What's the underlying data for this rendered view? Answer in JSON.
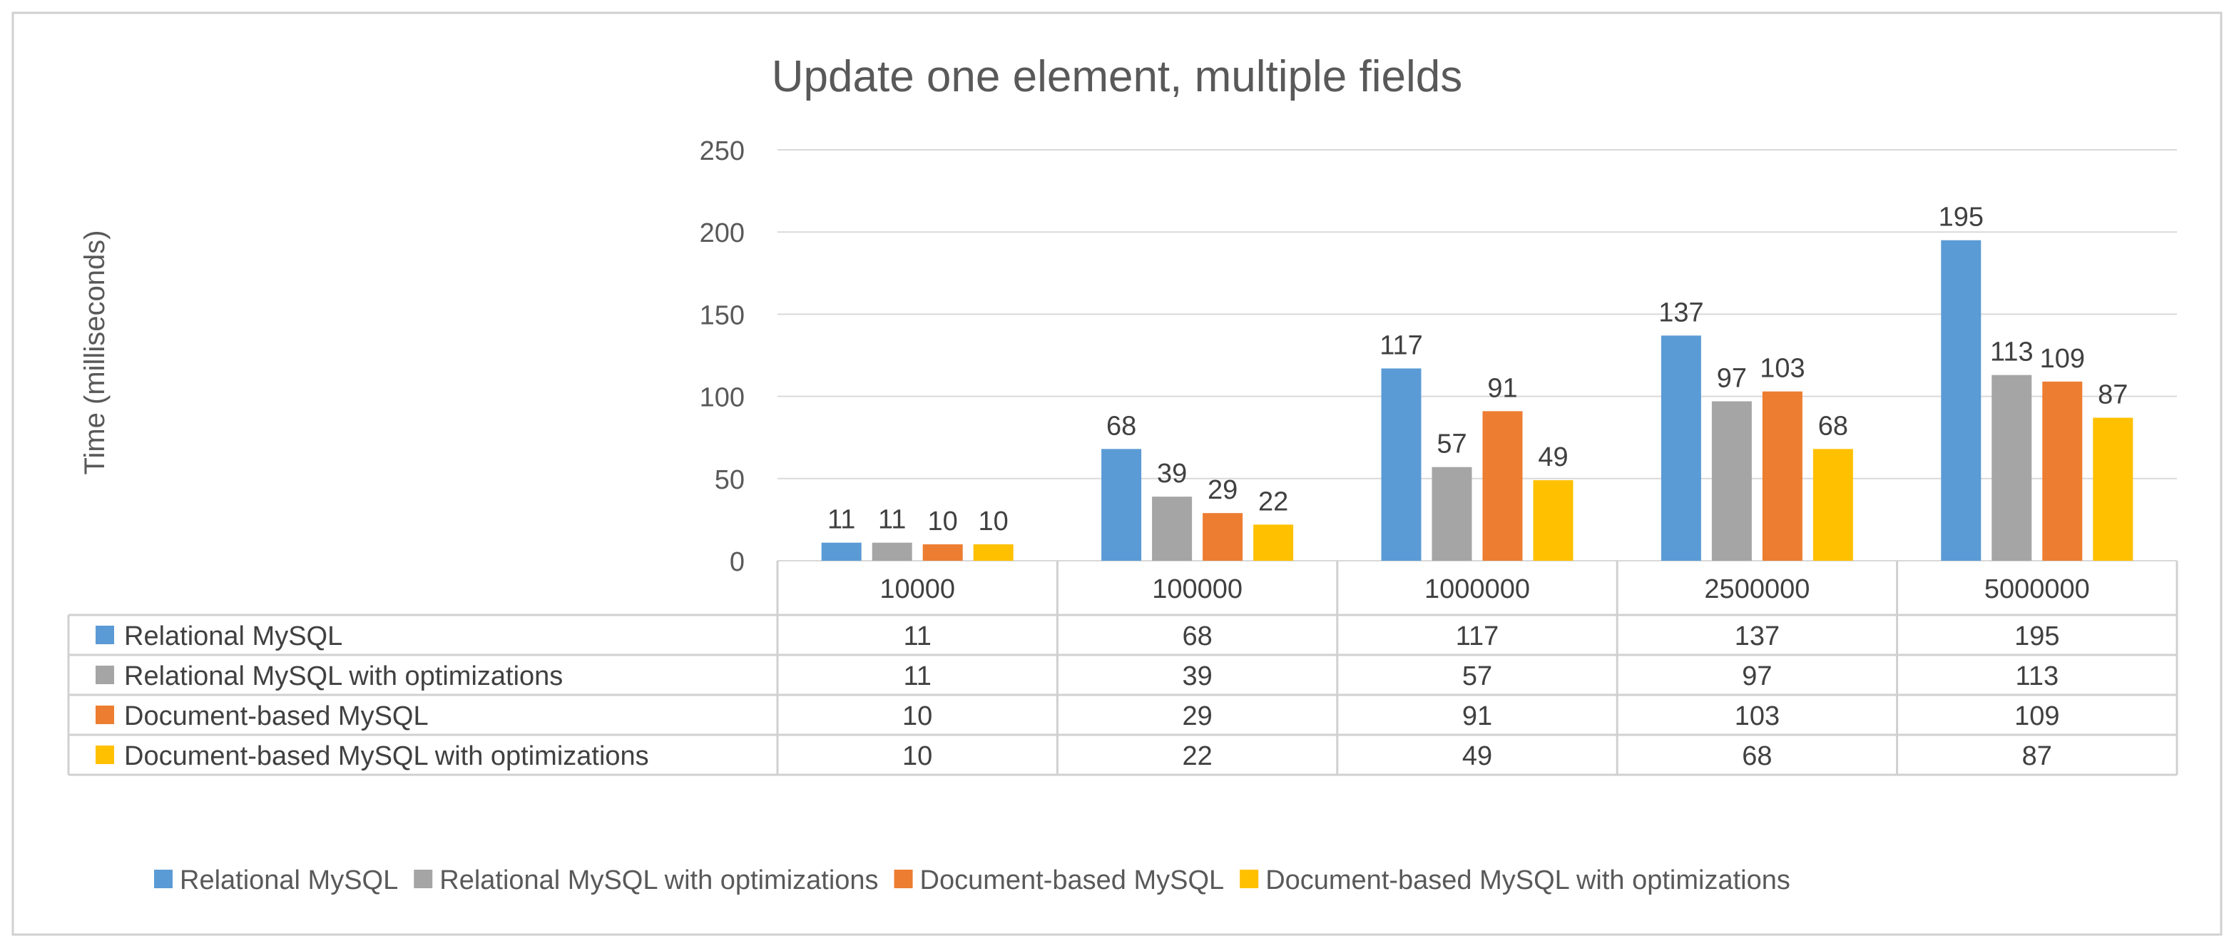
{
  "chart_data": {
    "type": "bar",
    "title": "Update one element, multiple fields",
    "xlabel": "",
    "ylabel": "Time (milliseconds)",
    "ylim": [
      0,
      250
    ],
    "yticks": [
      0,
      50,
      100,
      150,
      200,
      250
    ],
    "grid": true,
    "legend": "bottom",
    "categories": [
      "10000",
      "100000",
      "1000000",
      "2500000",
      "5000000"
    ],
    "series": [
      {
        "name": "Relational MySQL",
        "color": "#5B9BD5",
        "values": [
          11,
          68,
          117,
          137,
          195
        ]
      },
      {
        "name": "Relational MySQL with optimizations",
        "color": "#A5A5A5",
        "values": [
          11,
          39,
          57,
          97,
          113
        ]
      },
      {
        "name": "Document-based MySQL",
        "color": "#ED7D31",
        "values": [
          10,
          29,
          91,
          103,
          109
        ]
      },
      {
        "name": "Document-based MySQL with optimizations",
        "color": "#FFC000",
        "values": [
          10,
          22,
          49,
          68,
          87
        ]
      }
    ],
    "data_table": true
  }
}
